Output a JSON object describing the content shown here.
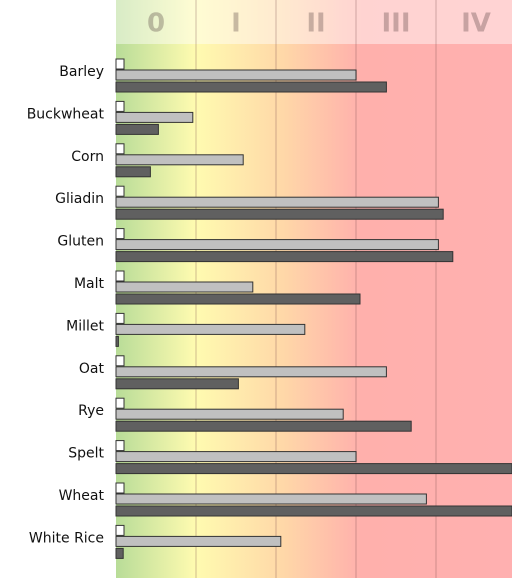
{
  "chart_data": {
    "type": "bar",
    "orientation": "horizontal",
    "categories": [
      "Barley",
      "Buckwheat",
      "Corn",
      "Gliadin",
      "Gluten",
      "Malt",
      "Millet",
      "Oat",
      "Rye",
      "Spelt",
      "Wheat",
      "White Rice"
    ],
    "series": [
      {
        "color": "#ffffff",
        "values": [
          0.1,
          0.1,
          0.1,
          0.1,
          0.1,
          0.1,
          0.1,
          0.1,
          0.1,
          0.1,
          0.1,
          0.1
        ]
      },
      {
        "color": "#c0c0c0",
        "values": [
          3.0,
          0.96,
          1.59,
          4.03,
          4.03,
          1.71,
          2.36,
          3.38,
          2.84,
          3.0,
          3.88,
          2.06
        ]
      },
      {
        "color": "#606060",
        "values": [
          3.38,
          0.53,
          0.43,
          4.09,
          4.21,
          3.05,
          0.03,
          1.53,
          3.69,
          4.95,
          4.95,
          0.09
        ]
      }
    ],
    "xlim": [
      0,
      4.95
    ],
    "xticks": [
      {
        "value": 0.5,
        "label": "0"
      },
      {
        "value": 1.5,
        "label": "I"
      },
      {
        "value": 2.5,
        "label": "II"
      },
      {
        "value": 3.5,
        "label": "III"
      },
      {
        "value": 4.5,
        "label": "IV"
      }
    ],
    "xgrid": [
      1,
      2,
      3,
      4
    ],
    "grid": true
  }
}
